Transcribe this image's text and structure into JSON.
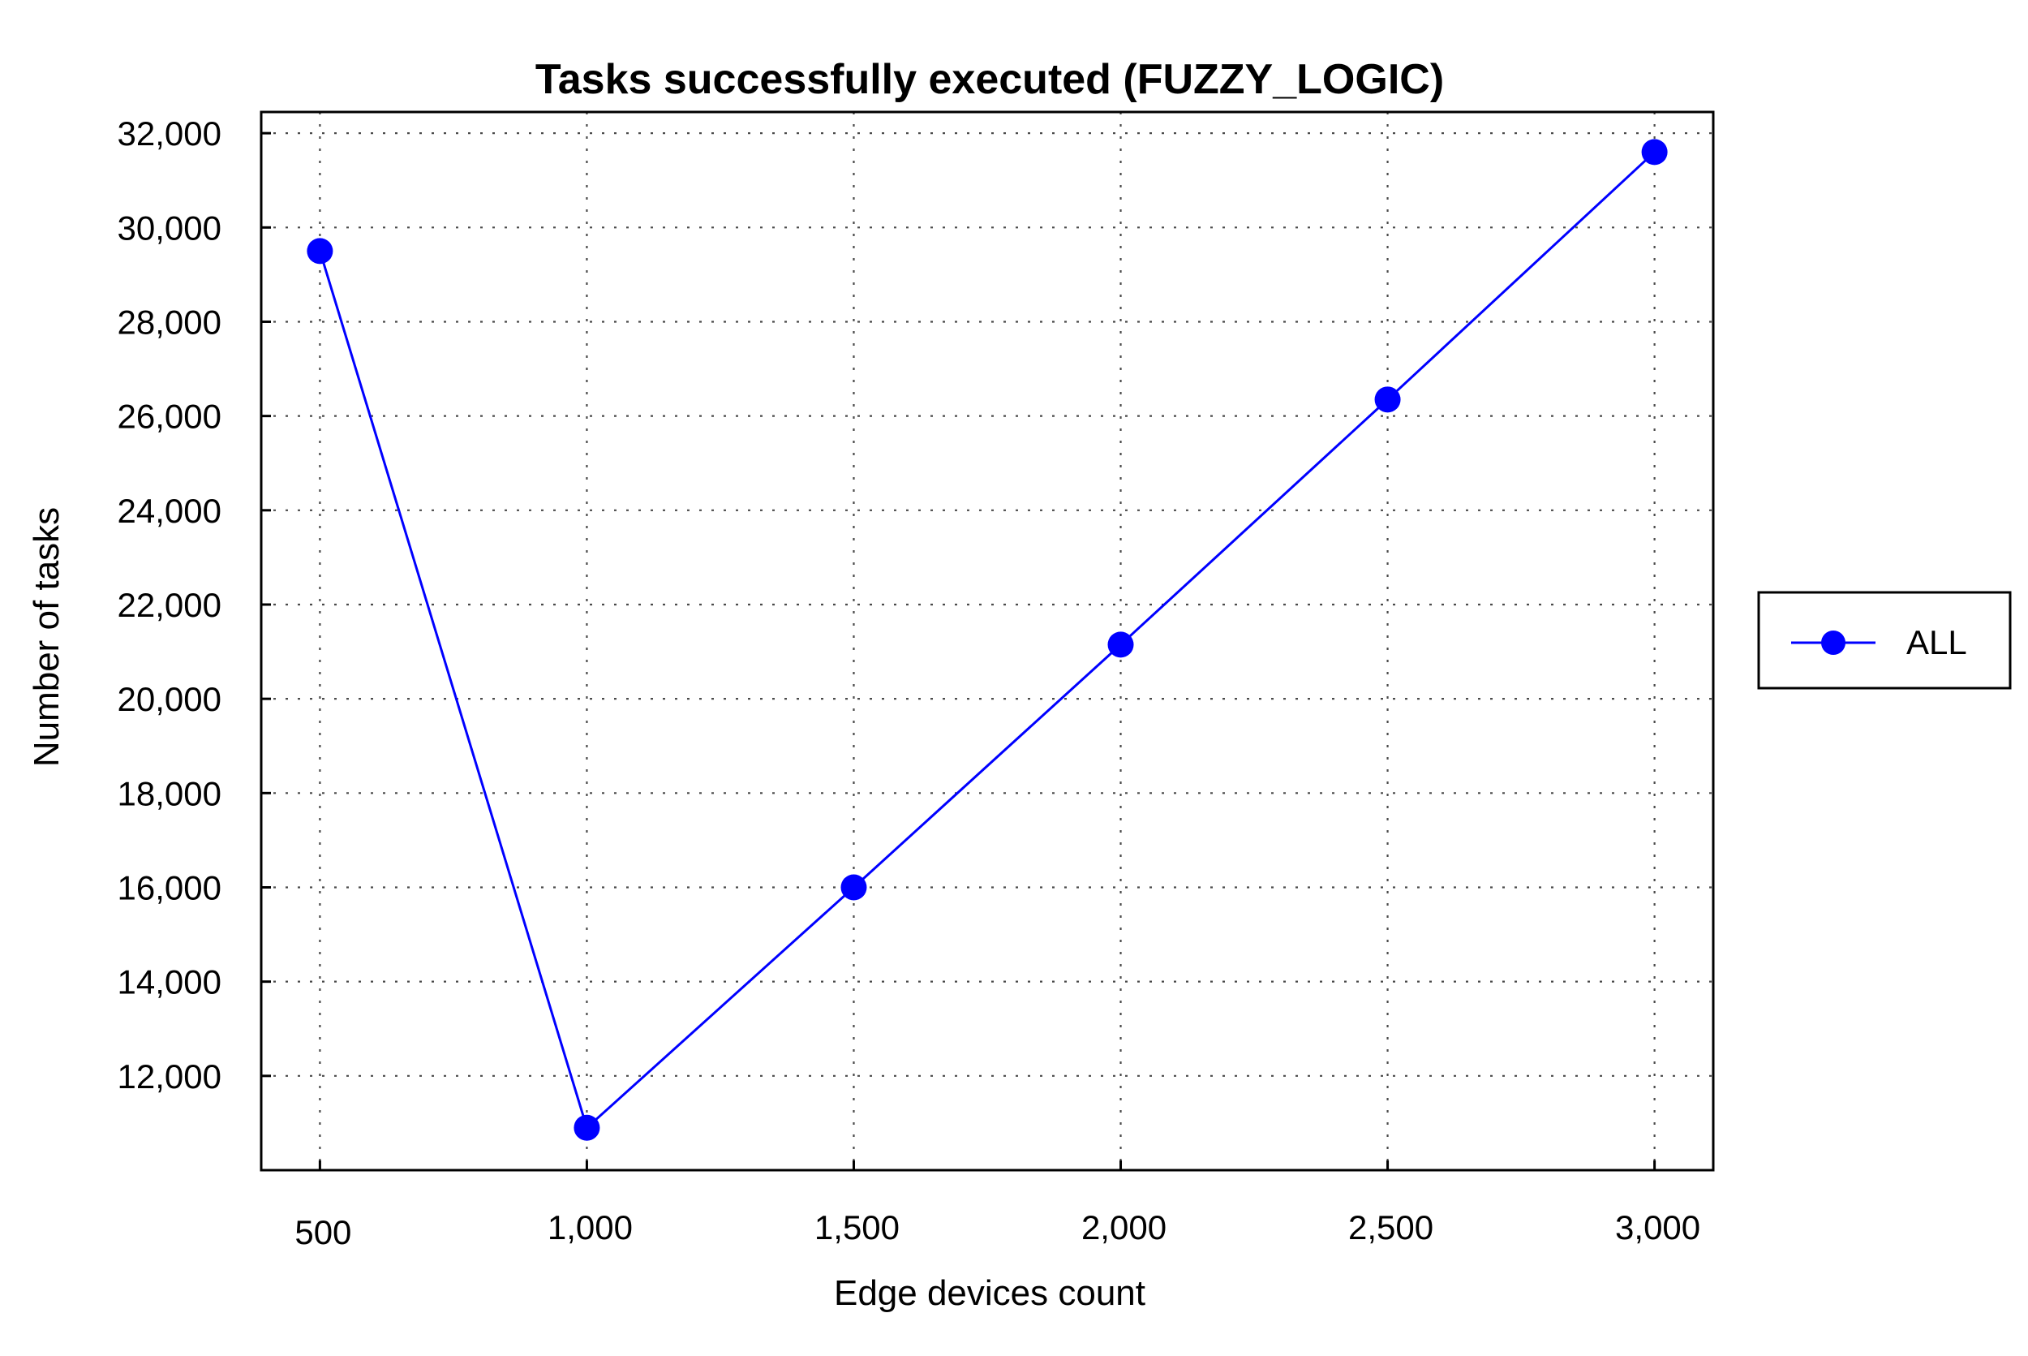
{
  "chart_data": {
    "type": "line",
    "title": "Tasks successfully executed (FUZZY_LOGIC)",
    "xlabel": "Edge devices count",
    "ylabel": "Number of tasks",
    "x": [
      500,
      1000,
      1500,
      2000,
      2500,
      3000
    ],
    "x_tick_labels": [
      "500",
      "1,000",
      "1,500",
      "2,000",
      "2,500",
      "3,000"
    ],
    "y_ticks": [
      12000,
      14000,
      16000,
      18000,
      20000,
      22000,
      24000,
      26000,
      28000,
      30000,
      32000
    ],
    "y_tick_labels": [
      "12,000",
      "14,000",
      "16,000",
      "18,000",
      "20,000",
      "22,000",
      "24,000",
      "26,000",
      "28,000",
      "30,000",
      "32,000"
    ],
    "xlim": [
      390,
      3110
    ],
    "ylim": [
      10000,
      32450
    ],
    "grid": true,
    "legend_position": "right",
    "series": [
      {
        "name": "ALL",
        "color": "#0000ff",
        "marker": "circle",
        "values": [
          29500,
          10900,
          16000,
          21150,
          26350,
          31600
        ]
      }
    ]
  }
}
